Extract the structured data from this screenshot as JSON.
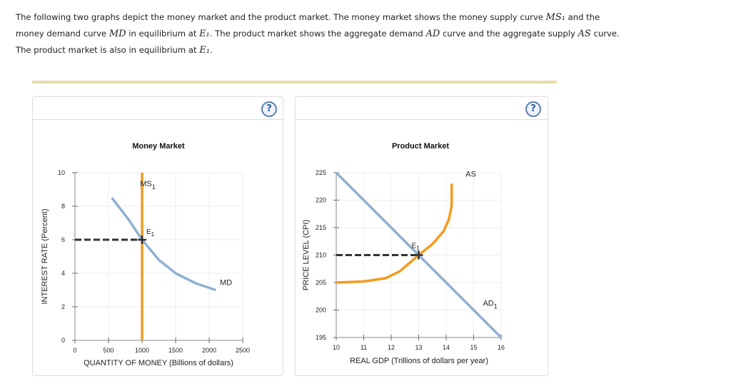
{
  "intro": {
    "p1": "The following two graphs depict the money market and the product market. The money market shows the money supply curve ",
    "ms": "MS₁",
    "p2": " and the money demand curve ",
    "md": "MD",
    "p3": " in equilibrium at ",
    "e1": "E₁",
    "p4": ". The product market shows the aggregate demand ",
    "ad": "AD",
    "p5": " curve and the aggregate supply ",
    "as": "AS",
    "p6": " curve. The product market is also in equilibrium at ",
    "e1b": "E₁",
    "p7": "."
  },
  "help_label": "?",
  "chart_data": [
    {
      "type": "line",
      "title": "Money Market",
      "xlabel": "QUANTITY OF MONEY (Billions of dollars)",
      "ylabel": "INTEREST RATE (Percent)",
      "xlim": [
        0,
        2500
      ],
      "ylim": [
        0,
        10
      ],
      "xticks": [
        0,
        500,
        1000,
        1500,
        2000,
        2500
      ],
      "yticks": [
        0,
        2,
        4,
        6,
        8,
        10
      ],
      "grid": true,
      "series": [
        {
          "name": "MS",
          "label": "MS",
          "sub": "1",
          "color": "#f59a1e",
          "points": [
            [
              1000,
              0
            ],
            [
              1000,
              10
            ]
          ]
        },
        {
          "name": "MD",
          "label": "MD",
          "sub": "",
          "color": "#8fb0d4",
          "points": [
            [
              550,
              8.5
            ],
            [
              800,
              7.2
            ],
            [
              1000,
              6
            ],
            [
              1250,
              4.8
            ],
            [
              1500,
              4
            ],
            [
              1800,
              3.4
            ],
            [
              2100,
              3
            ]
          ]
        }
      ],
      "equilibrium": {
        "label": "E",
        "sub": "1",
        "x": 1000,
        "y": 6
      }
    },
    {
      "type": "line",
      "title": "Product Market",
      "xlabel": "REAL GDP (Trillions of dollars per year)",
      "ylabel": "PRICE LEVEL (CPI)",
      "xlim": [
        10,
        16
      ],
      "ylim": [
        195,
        225
      ],
      "xticks": [
        10,
        11,
        12,
        13,
        14,
        15,
        16
      ],
      "yticks": [
        195,
        200,
        205,
        210,
        215,
        220,
        225
      ],
      "grid": true,
      "series": [
        {
          "name": "AS",
          "label": "AS",
          "sub": "",
          "color": "#f59a1e",
          "points": [
            [
              10,
              205
            ],
            [
              11,
              205.2
            ],
            [
              11.8,
              205.8
            ],
            [
              12.3,
              207
            ],
            [
              12.7,
              208.7
            ],
            [
              13,
              210
            ],
            [
              13.5,
              212
            ],
            [
              13.9,
              214.3
            ],
            [
              14.1,
              216.5
            ],
            [
              14.2,
              219
            ],
            [
              14.2,
              223
            ]
          ]
        },
        {
          "name": "AD",
          "label": "AD",
          "sub": "1",
          "color": "#8fb0d4",
          "points": [
            [
              10,
              225
            ],
            [
              16,
              195
            ]
          ]
        }
      ],
      "equilibrium": {
        "label": "E",
        "sub": "1",
        "x": 13,
        "y": 210
      }
    }
  ]
}
